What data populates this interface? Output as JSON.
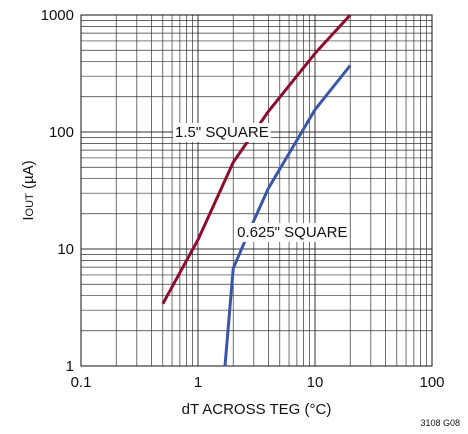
{
  "chart_data": {
    "type": "line",
    "x_scale": "log",
    "y_scale": "log",
    "xlim": [
      0.1,
      100
    ],
    "ylim": [
      1,
      1000
    ],
    "xlabel": "dT ACROSS TEG (°C)",
    "ylabel": {
      "main": "I",
      "sub": "OUT",
      "unit": " (µA)"
    },
    "x_ticks": [
      {
        "value": 0.1,
        "label": "0.1"
      },
      {
        "value": 1,
        "label": "1"
      },
      {
        "value": 10,
        "label": "10"
      },
      {
        "value": 100,
        "label": "100"
      }
    ],
    "y_ticks": [
      {
        "value": 1,
        "label": "1"
      },
      {
        "value": 10,
        "label": "10"
      },
      {
        "value": 100,
        "label": "100"
      },
      {
        "value": 1000,
        "label": "1000"
      }
    ],
    "grid": true,
    "series": [
      {
        "name": "1.5\" SQUARE",
        "color": "#8b0a2e",
        "x": [
          0.5,
          1,
          2,
          4,
          10,
          20
        ],
        "y": [
          3.4,
          12,
          55,
          150,
          470,
          1000
        ]
      },
      {
        "name": "0.625\" SQUARE",
        "color": "#3a56a6",
        "x": [
          1.7,
          2,
          2.8,
          4,
          10,
          20
        ],
        "y": [
          1,
          6.8,
          15,
          33,
          155,
          370
        ]
      }
    ],
    "figure_id": "3108 G08"
  }
}
